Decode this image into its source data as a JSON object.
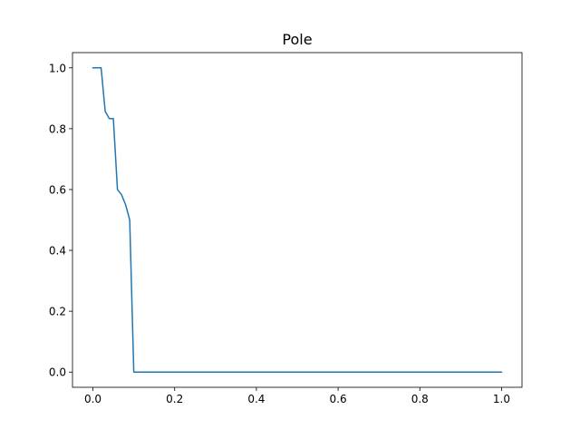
{
  "chart_data": {
    "type": "line",
    "title": "Pole",
    "xlabel": "",
    "ylabel": "",
    "xlim": [
      -0.05,
      1.05
    ],
    "ylim": [
      -0.05,
      1.05
    ],
    "x_ticks": [
      0.0,
      0.2,
      0.4,
      0.6,
      0.8,
      1.0
    ],
    "x_tick_labels": [
      "0.0",
      "0.2",
      "0.4",
      "0.6",
      "0.8",
      "1.0"
    ],
    "y_ticks": [
      0.0,
      0.2,
      0.4,
      0.6,
      0.8,
      1.0
    ],
    "y_tick_labels": [
      "0.0",
      "0.2",
      "0.4",
      "0.6",
      "0.8",
      "1.0"
    ],
    "grid": false,
    "legend": false,
    "series": [
      {
        "color": "#1f77b4",
        "x": [
          0.0,
          0.02,
          0.03,
          0.04,
          0.05,
          0.06,
          0.07,
          0.08,
          0.09,
          0.1,
          0.2,
          0.3,
          0.4,
          0.5,
          0.6,
          0.7,
          0.8,
          0.9,
          1.0
        ],
        "y": [
          1.0,
          1.0,
          0.857,
          0.833,
          0.833,
          0.6,
          0.583,
          0.55,
          0.5,
          0.0,
          0.0,
          0.0,
          0.0,
          0.0,
          0.0,
          0.0,
          0.0,
          0.0,
          0.0
        ]
      }
    ]
  }
}
